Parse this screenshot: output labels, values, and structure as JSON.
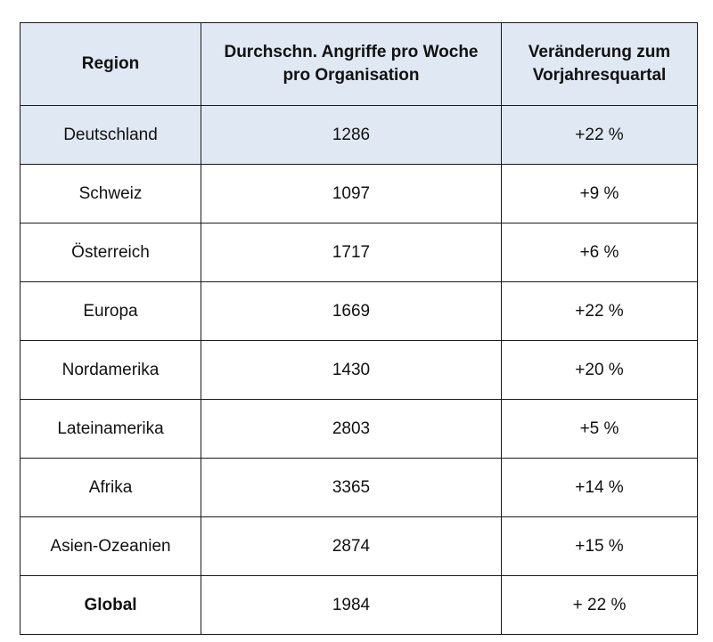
{
  "table": {
    "headers": {
      "region": "Region",
      "attacks_line1": "Durchschn. Angriffe pro Woche",
      "attacks_line2": "pro Organisation",
      "change_line1": "Veränderung zum",
      "change_line2": "Vorjahresquartal"
    },
    "rows": [
      {
        "region": "Deutschland",
        "attacks": "1286",
        "change": "+22 %"
      },
      {
        "region": "Schweiz",
        "attacks": "1097",
        "change": "+9 %"
      },
      {
        "region": "Österreich",
        "attacks": "1717",
        "change": "+6 %"
      },
      {
        "region": "Europa",
        "attacks": "1669",
        "change": "+22 %"
      },
      {
        "region": "Nordamerika",
        "attacks": "1430",
        "change": "+20 %"
      },
      {
        "region": "Lateinamerika",
        "attacks": "2803",
        "change": "+5 %"
      },
      {
        "region": "Afrika",
        "attacks": "3365",
        "change": "+14 %"
      },
      {
        "region": "Asien-Ozeanien",
        "attacks": "2874",
        "change": "+15 %"
      },
      {
        "region": "Global",
        "attacks": "1984",
        "change": "+ 22 %"
      }
    ],
    "colors": {
      "header_background": "#dfe8f3",
      "highlight_row_background": "#dfe8f3",
      "border": "#1a1a1a"
    }
  }
}
